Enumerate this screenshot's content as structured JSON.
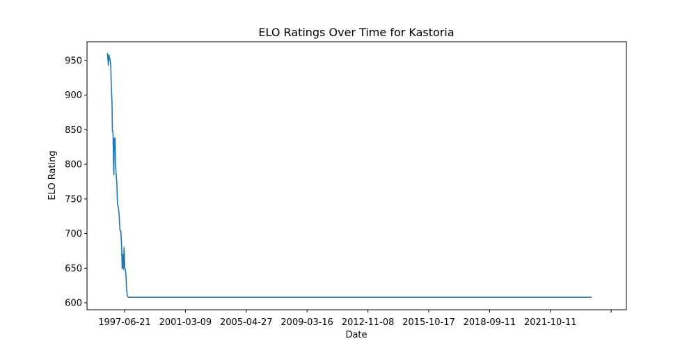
{
  "chart_data": {
    "type": "line",
    "title": "ELO Ratings Over Time for Kastoria",
    "xlabel": "Date",
    "ylabel": "ELO Rating",
    "x_tick_labels": [
      "1997-06-21",
      "2001-03-09",
      "2005-04-27",
      "2009-03-16",
      "2012-11-08",
      "2015-10-17",
      "2018-09-11",
      "2021-10-11",
      ""
    ],
    "y_ticks": [
      600,
      650,
      700,
      750,
      800,
      850,
      900,
      950
    ],
    "ylim": [
      590,
      977
    ],
    "xlim": [
      "1994-12-05",
      "2030-08-15"
    ],
    "grid": false,
    "series": [
      {
        "color": "#1f77b4",
        "points": [
          [
            "1996-04-01",
            960
          ],
          [
            "1996-04-15",
            960
          ],
          [
            "1996-05-05",
            943
          ],
          [
            "1996-05-20",
            958
          ],
          [
            "1996-06-15",
            950
          ],
          [
            "1996-07-01",
            944
          ],
          [
            "1996-07-15",
            910
          ],
          [
            "1996-08-01",
            888
          ],
          [
            "1996-08-10",
            847
          ],
          [
            "1996-08-25",
            846
          ],
          [
            "1996-09-05",
            806
          ],
          [
            "1996-09-15",
            785
          ],
          [
            "1996-09-25",
            838
          ],
          [
            "1996-10-05",
            825
          ],
          [
            "1996-10-15",
            838
          ],
          [
            "1996-10-25",
            800
          ],
          [
            "1996-11-10",
            783
          ],
          [
            "1996-11-25",
            773
          ],
          [
            "1996-12-10",
            742
          ],
          [
            "1997-01-01",
            738
          ],
          [
            "1997-01-20",
            727
          ],
          [
            "1997-02-10",
            704
          ],
          [
            "1997-03-01",
            704
          ],
          [
            "1997-03-20",
            682
          ],
          [
            "1997-04-05",
            650
          ],
          [
            "1997-04-20",
            670
          ],
          [
            "1997-05-05",
            648
          ],
          [
            "1997-05-20",
            680
          ],
          [
            "1997-06-05",
            650
          ],
          [
            "1997-06-20",
            648
          ],
          [
            "1997-07-05",
            638
          ],
          [
            "1997-07-20",
            620
          ],
          [
            "1997-08-05",
            610
          ],
          [
            "1997-09-01",
            608
          ],
          [
            "2028-05-01",
            608
          ]
        ]
      }
    ]
  }
}
